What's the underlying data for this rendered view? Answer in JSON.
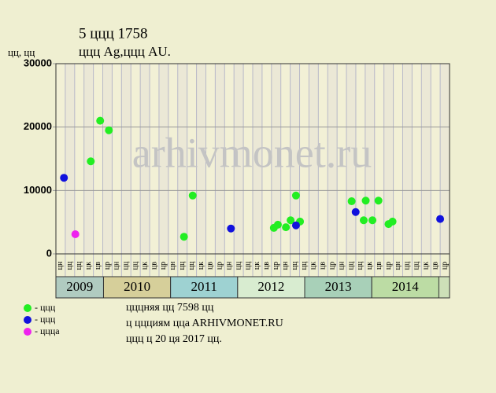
{
  "chart_data": {
    "type": "scatter",
    "title": "5 ццц 1758",
    "subtitle": "ццц Ag,ццц AU.",
    "y_label": "цц, цц",
    "watermark": "arhivmonet.ru",
    "xlim": [
      2009.29,
      2015.16
    ],
    "ylim": [
      0,
      30000
    ],
    "yticks": [
      0,
      10000,
      20000,
      30000
    ],
    "years": [
      2009,
      2010,
      2011,
      2012,
      2013,
      2014
    ],
    "period_labels": [
      "цн",
      "цц",
      "цц",
      "цк",
      "цв",
      "цр",
      "цн",
      "цц",
      "цц",
      "цк",
      "цв",
      "цр",
      "цн",
      "цц",
      "цц",
      "цк",
      "цв",
      "цр",
      "цн",
      "цц",
      "цц",
      "цк",
      "цв",
      "цр",
      "цн",
      "цц",
      "цц",
      "цк",
      "цв",
      "цр",
      "цн",
      "цц",
      "цц",
      "цк",
      "цв",
      "цр",
      "цн",
      "цц",
      "цц",
      "цк",
      "цв",
      "цр"
    ],
    "series": [
      {
        "name": "- ццц",
        "color": "#22ee22",
        "x": [
          2009.81,
          2009.95,
          2010.08,
          2011.2,
          2011.33,
          2012.54,
          2012.6,
          2012.72,
          2012.79,
          2012.87,
          2012.93,
          2013.7,
          2013.88,
          2013.91,
          2014.01,
          2014.1,
          2014.25,
          2014.31
        ],
        "values": [
          14600,
          21000,
          19500,
          2700,
          9200,
          4100,
          4600,
          4200,
          5300,
          9200,
          5100,
          8300,
          5300,
          8400,
          5300,
          8400,
          4700,
          5100
        ]
      },
      {
        "name": "- ццц",
        "color": "#1111dd",
        "x": [
          2009.41,
          2011.9,
          2012.87,
          2013.76,
          2015.02
        ],
        "values": [
          12000,
          4000,
          4500,
          6600,
          5500
        ]
      },
      {
        "name": "- цццa",
        "color": "#ee22ee",
        "x": [
          2009.58
        ],
        "values": [
          3100
        ]
      }
    ],
    "footer": [
      "цццняя цц 7598 цц",
      "ц ццциям ццa ARHIVMONET.RU",
      "ццц ц 20 ця 2017 цц."
    ]
  }
}
